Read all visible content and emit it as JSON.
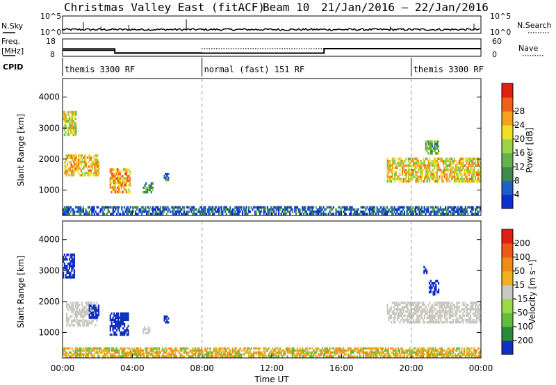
{
  "title": {
    "station": "Christmas Valley East (fitACF)",
    "beam": "Beam 10",
    "dates": "21/Jan/2016 – 22/Jan/2016"
  },
  "top_panels": {
    "nsky_label": "N.Sky",
    "nsky_ticks": [
      "10^5",
      "10^0"
    ],
    "nsearch_label": "N.Search",
    "nsearch_ticks": [
      "10^5",
      "10^0"
    ],
    "freq_label": "Freq.",
    "freq_unit": "[MHz]",
    "freq_ticks": [
      "18",
      "8"
    ],
    "nave_label": "Nave",
    "nave_ticks": [
      "60",
      "0"
    ],
    "cpid_label": "CPID",
    "cpid_segments": [
      {
        "start": 0,
        "end": 8,
        "label": "themis 3300 RF"
      },
      {
        "start": 8,
        "end": 20,
        "label": "normal (fast) 151 RF"
      },
      {
        "start": 20,
        "end": 24,
        "label": "themis 3300 RF"
      }
    ],
    "freq_series": [
      {
        "start": 0,
        "end": 3,
        "value": 11.5
      },
      {
        "start": 3,
        "end": 15,
        "value": 9.8
      },
      {
        "start": 15,
        "end": 24,
        "value": 12.4
      }
    ]
  },
  "chart_data": [
    {
      "type": "heatmap",
      "ylabel": "Slant Range [km]",
      "yticks": [
        1000,
        2000,
        3000,
        4000
      ],
      "ylim": [
        180,
        4600
      ],
      "xlim": [
        0,
        24
      ],
      "colorbar": {
        "label": "Power [dB]",
        "ticks": [
          4,
          8,
          12,
          16,
          20,
          24,
          28
        ],
        "colors": [
          "#0b2fd0",
          "#1f5fc8",
          "#3f8a4a",
          "#63b34a",
          "#9ad24a",
          "#f0e020",
          "#f7a020",
          "#f06018",
          "#e02010"
        ]
      },
      "regions": [
        {
          "t0": 0.0,
          "t1": 0.8,
          "r0": 2750,
          "r1": 3550,
          "level": 20
        },
        {
          "t0": 0.1,
          "t1": 2.1,
          "r0": 1450,
          "r1": 2150,
          "level": 24
        },
        {
          "t0": 2.7,
          "t1": 3.9,
          "r0": 900,
          "r1": 1700,
          "level": 26
        },
        {
          "t0": 4.6,
          "t1": 5.2,
          "r0": 900,
          "r1": 1250,
          "level": 12
        },
        {
          "t0": 5.8,
          "t1": 6.1,
          "r0": 1300,
          "r1": 1550,
          "level": 8
        },
        {
          "t0": 18.6,
          "t1": 24.0,
          "r0": 1250,
          "r1": 2050,
          "level": 22
        },
        {
          "t0": 20.8,
          "t1": 21.6,
          "r0": 2150,
          "r1": 2600,
          "level": 14
        },
        {
          "t0": 0.0,
          "t1": 24.0,
          "r0": 200,
          "r1": 480,
          "level": 6
        }
      ]
    },
    {
      "type": "heatmap",
      "ylabel": "Slant Range [km]",
      "xlabel": "Time UT",
      "xticks": [
        "00:00",
        "04:00",
        "08:00",
        "12:00",
        "16:00",
        "20:00",
        "00:00"
      ],
      "yticks": [
        1000,
        2000,
        3000,
        4000
      ],
      "ylim": [
        180,
        4600
      ],
      "xlim": [
        0,
        24
      ],
      "colorbar": {
        "label": "Velocity [m s⁻¹]",
        "ticks": [
          200,
          100,
          50,
          15,
          -15,
          -50,
          -100,
          -200
        ],
        "colors": [
          "#1030c0",
          "#2a8a3a",
          "#5fbf3a",
          "#9bd84a",
          "#c8c8c0",
          "#f2b020",
          "#f08a18",
          "#f05818",
          "#e02010"
        ]
      },
      "regions": [
        {
          "t0": 0.0,
          "t1": 0.7,
          "r0": 2750,
          "r1": 3550,
          "level": 200
        },
        {
          "t0": 0.2,
          "t1": 2.0,
          "r0": 1200,
          "r1": 2000,
          "level": 0
        },
        {
          "t0": 1.5,
          "t1": 2.1,
          "r0": 1450,
          "r1": 1900,
          "level": 200
        },
        {
          "t0": 2.7,
          "t1": 3.8,
          "r0": 900,
          "r1": 1650,
          "level": 150
        },
        {
          "t0": 4.6,
          "t1": 5.1,
          "r0": 950,
          "r1": 1200,
          "level": 0
        },
        {
          "t0": 5.8,
          "t1": 6.1,
          "r0": 1300,
          "r1": 1550,
          "level": 200
        },
        {
          "t0": 18.6,
          "t1": 24.0,
          "r0": 1300,
          "r1": 2000,
          "level": 0
        },
        {
          "t0": 21.0,
          "t1": 21.6,
          "r0": 2200,
          "r1": 2700,
          "level": 200
        },
        {
          "t0": 20.7,
          "t1": 21.0,
          "r0": 2900,
          "r1": 3150,
          "level": 200
        },
        {
          "t0": 0.0,
          "t1": 24.0,
          "r0": 200,
          "r1": 520,
          "level": -30
        }
      ]
    }
  ]
}
